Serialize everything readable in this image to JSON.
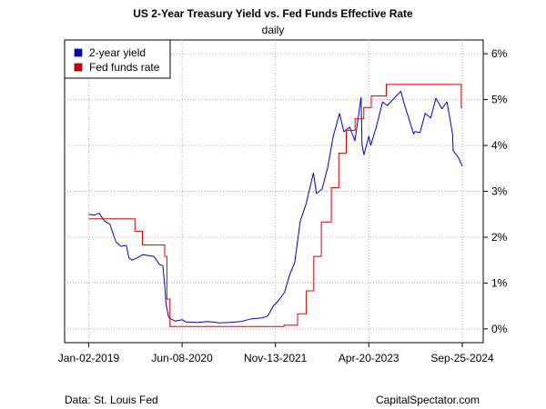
{
  "header": {
    "title": "US 2-Year Treasury Yield vs. Fed Funds Effective Rate",
    "subtitle": "daily"
  },
  "footer": {
    "source": "Data: St. Louis Fed",
    "credit": "CapitalSpectator.com"
  },
  "colors": {
    "yield": "#0000cc",
    "fed": "#dd0000",
    "grid": "#aaaaaa"
  },
  "chart_data": {
    "type": "line",
    "title": "US 2-Year Treasury Yield vs. Fed Funds Effective Rate",
    "subtitle": "daily",
    "x_tick_labels": [
      "Jan-02-2019",
      "Jun-08-2020",
      "Nov-13-2021",
      "Apr-20-2023",
      "Sep-25-2024"
    ],
    "x_tick_dates": [
      "2019-01-02",
      "2020-06-08",
      "2021-11-13",
      "2023-04-20",
      "2024-09-25"
    ],
    "y_tick_labels": [
      "0%",
      "1%",
      "2%",
      "3%",
      "4%",
      "5%",
      "6%"
    ],
    "y_ticks": [
      0,
      1,
      2,
      3,
      4,
      5,
      6
    ],
    "ylim": [
      -0.3,
      6.3
    ],
    "xlim": [
      "2018-08-20",
      "2025-01-20"
    ],
    "grid": true,
    "y_axis_side": "right",
    "legend_position": "top-left",
    "series": [
      {
        "name": "2-year yield",
        "x": [
          "2019-01-02",
          "2019-02-01",
          "2019-03-01",
          "2019-04-01",
          "2019-05-01",
          "2019-06-03",
          "2019-07-01",
          "2019-08-01",
          "2019-08-15",
          "2019-09-03",
          "2019-10-01",
          "2019-11-01",
          "2019-12-02",
          "2020-01-02",
          "2020-02-03",
          "2020-02-21",
          "2020-03-03",
          "2020-03-10",
          "2020-03-23",
          "2020-04-01",
          "2020-05-01",
          "2020-06-08",
          "2020-07-01",
          "2020-09-01",
          "2020-11-02",
          "2021-01-04",
          "2021-03-01",
          "2021-05-03",
          "2021-07-01",
          "2021-09-01",
          "2021-10-01",
          "2021-11-01",
          "2021-12-01",
          "2022-01-03",
          "2022-02-01",
          "2022-03-01",
          "2022-03-15",
          "2022-04-01",
          "2022-05-02",
          "2022-06-14",
          "2022-07-01",
          "2022-08-01",
          "2022-09-01",
          "2022-10-03",
          "2022-11-07",
          "2022-12-01",
          "2023-01-03",
          "2023-02-01",
          "2023-03-08",
          "2023-03-13",
          "2023-03-24",
          "2023-04-20",
          "2023-05-01",
          "2023-06-01",
          "2023-07-06",
          "2023-08-01",
          "2023-09-01",
          "2023-10-17",
          "2023-11-01",
          "2023-12-01",
          "2023-12-27",
          "2024-01-02",
          "2024-02-01",
          "2024-03-01",
          "2024-04-01",
          "2024-04-30",
          "2024-06-03",
          "2024-07-01",
          "2024-08-01",
          "2024-08-05",
          "2024-09-02",
          "2024-09-25"
        ],
        "values": [
          2.5,
          2.48,
          2.52,
          2.35,
          2.28,
          1.9,
          1.8,
          1.82,
          1.55,
          1.5,
          1.55,
          1.62,
          1.6,
          1.58,
          1.4,
          1.38,
          0.95,
          0.55,
          0.28,
          0.23,
          0.17,
          0.2,
          0.15,
          0.14,
          0.16,
          0.13,
          0.14,
          0.16,
          0.22,
          0.24,
          0.28,
          0.5,
          0.62,
          0.8,
          1.18,
          1.45,
          1.85,
          2.35,
          2.7,
          3.4,
          2.95,
          3.05,
          3.5,
          4.2,
          4.7,
          4.3,
          4.4,
          4.1,
          5.05,
          4.0,
          3.8,
          4.2,
          4.0,
          4.4,
          4.95,
          4.87,
          5.0,
          5.18,
          4.95,
          4.58,
          4.25,
          4.3,
          4.28,
          4.7,
          4.6,
          5.03,
          4.8,
          4.95,
          4.25,
          3.88,
          3.75,
          3.55
        ]
      },
      {
        "name": "Fed funds rate",
        "x": [
          "2019-01-02",
          "2019-07-31",
          "2019-09-18",
          "2019-10-30",
          "2020-03-03",
          "2020-03-15",
          "2020-04-01",
          "2021-12-31",
          "2022-03-17",
          "2022-05-05",
          "2022-06-16",
          "2022-07-28",
          "2022-09-22",
          "2022-11-03",
          "2022-12-15",
          "2023-02-02",
          "2023-03-23",
          "2023-05-04",
          "2023-07-27",
          "2024-09-19",
          "2024-09-25"
        ],
        "values": [
          2.4,
          2.4,
          2.13,
          1.83,
          1.58,
          0.65,
          0.05,
          0.08,
          0.33,
          0.83,
          1.58,
          2.33,
          3.08,
          3.83,
          4.33,
          4.58,
          4.83,
          5.08,
          5.33,
          4.83,
          4.83
        ]
      }
    ]
  }
}
